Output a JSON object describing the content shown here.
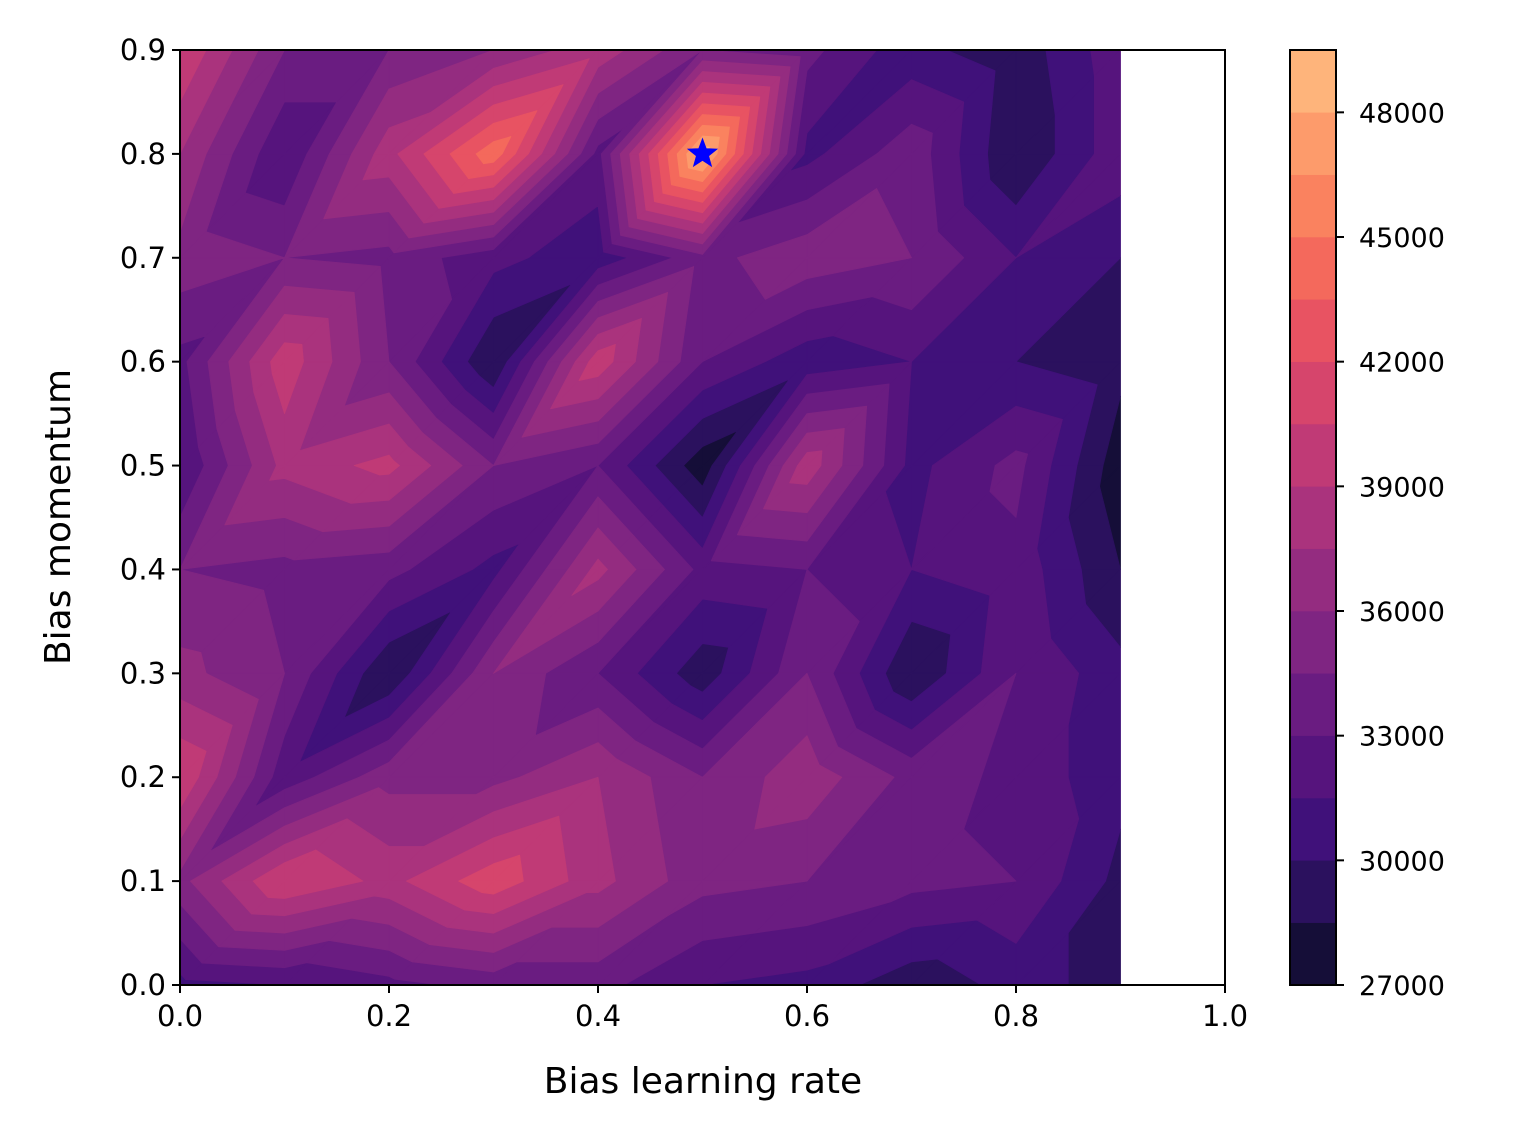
{
  "chart_data": {
    "type": "heatmap",
    "title": "",
    "xlabel": "Bias learning rate",
    "ylabel": "Bias momentum",
    "xlim": [
      0.0,
      1.0
    ],
    "ylim": [
      0.0,
      0.9
    ],
    "xticks": [
      "0.0",
      "0.2",
      "0.4",
      "0.6",
      "0.8",
      "1.0"
    ],
    "yticks": [
      "0.0",
      "0.1",
      "0.2",
      "0.3",
      "0.4",
      "0.5",
      "0.6",
      "0.7",
      "0.8",
      "0.9"
    ],
    "x": [
      0.0,
      0.1,
      0.2,
      0.3,
      0.4,
      0.5,
      0.6,
      0.7,
      0.8,
      0.9
    ],
    "y": [
      0.0,
      0.1,
      0.2,
      0.3,
      0.4,
      0.5,
      0.6,
      0.7,
      0.8,
      0.9
    ],
    "z": [
      [
        31000,
        31500,
        32500,
        33500,
        33500,
        31500,
        31000,
        29000,
        30500,
        29500
      ],
      [
        35500,
        40500,
        38500,
        41500,
        38000,
        35000,
        34500,
        33500,
        33000,
        29500
      ],
      [
        40500,
        32000,
        35500,
        35500,
        37500,
        34500,
        37000,
        34000,
        32500,
        30500
      ],
      [
        36500,
        34500,
        28500,
        36000,
        33000,
        29000,
        34500,
        28500,
        33000,
        30500
      ],
      [
        34500,
        34000,
        33500,
        31000,
        38000,
        32500,
        33000,
        31500,
        32500,
        28500
      ],
      [
        31500,
        38000,
        39500,
        34500,
        33000,
        27500,
        38500,
        31000,
        33500,
        27500
      ],
      [
        32500,
        40000,
        34500,
        28500,
        40000,
        33000,
        30500,
        31500,
        30000,
        29000
      ],
      [
        35500,
        34500,
        34000,
        32000,
        30500,
        34000,
        35500,
        34500,
        31500,
        30000
      ],
      [
        37500,
        31500,
        38500,
        44500,
        32500,
        49000,
        31000,
        34000,
        28500,
        32500
      ],
      [
        40500,
        34500,
        34500,
        36000,
        38500,
        34500,
        33500,
        30500,
        29000,
        32500
      ]
    ],
    "colormap": "magma",
    "levels": [
      27000,
      28500,
      30000,
      31500,
      33000,
      34500,
      36000,
      37500,
      39000,
      40500,
      42000,
      43500,
      45000,
      46500,
      48000,
      49500
    ],
    "level_colors": [
      "#06051a",
      "#150e38",
      "#2b115e",
      "#40117a",
      "#56147d",
      "#6a1c81",
      "#7f2582",
      "#942c80",
      "#aa337d",
      "#c03a76",
      "#d6456c",
      "#e85362",
      "#f4695c",
      "#fa825f",
      "#fd9b6b",
      "#feb47b",
      "#fecd90",
      "#fde5a7",
      "#fcf0b4"
    ],
    "colorbar": {
      "ticks": [
        27000,
        30000,
        33000,
        36000,
        39000,
        42000,
        45000,
        48000
      ],
      "tick_labels": [
        "27000",
        "30000",
        "33000",
        "36000",
        "39000",
        "42000",
        "45000",
        "48000"
      ],
      "range": [
        27000,
        49500
      ]
    },
    "marker": {
      "shape": "star",
      "x": 0.5,
      "y": 0.8,
      "color": "#0000ff"
    }
  }
}
